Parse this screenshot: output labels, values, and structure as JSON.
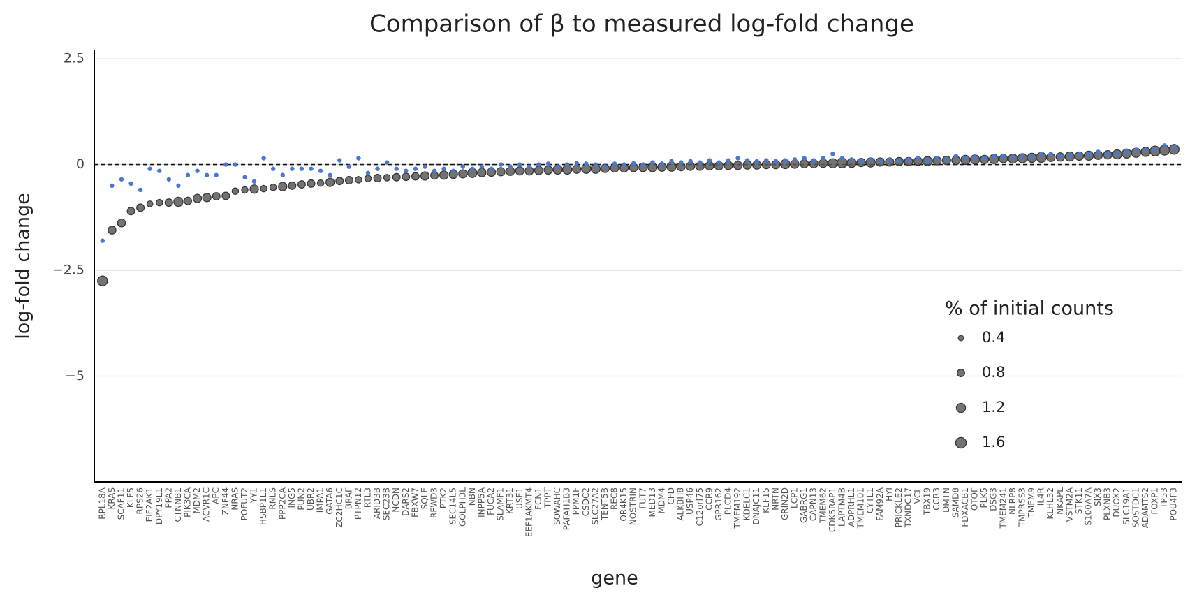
{
  "chart_data": {
    "type": "dot",
    "title": "Comparison of β to measured log-fold change",
    "x_label": "gene",
    "y_label": "log-fold change",
    "ylim": [
      -7.5,
      2.7
    ],
    "yticks": [
      2.5,
      0,
      {
        "value": -2.5,
        "label": "−2.5"
      },
      {
        "value": -5,
        "label": "−5"
      }
    ],
    "grid": true,
    "reference_line": 0,
    "categories": [
      "RPL18A",
      "KRAS",
      "SCAF11",
      "KLF5",
      "RPS26",
      "EIF2AK1",
      "DPY19L1",
      "PPA2",
      "CTNNB1",
      "PIK3CA",
      "MDM2",
      "ACVR1C",
      "APC",
      "ZNF44",
      "NRAS",
      "POFUT2",
      "YY1",
      "HSBP1L1",
      "RNLS",
      "PPP2CA",
      "ING5",
      "PUN2",
      "UBR2",
      "IMPA1",
      "GATA6",
      "ZC2HC1C",
      "BRAF",
      "PTPN12",
      "RTL3",
      "ARID3B",
      "SEC23B",
      "NCDN",
      "DARS2",
      "FBXW7",
      "SQLE",
      "RFWD3",
      "PTK2",
      "SEC14L5",
      "GOLPH3L",
      "NBN",
      "INPP5A",
      "FUCA2",
      "SLAMF1",
      "KRT31",
      "USF1",
      "EEF1AKMT4",
      "FCN1",
      "TPPT",
      "SOWAHC",
      "PAFAH1B3",
      "PPM1F",
      "CSDC2",
      "SLC27A2",
      "TENT5B",
      "REC8",
      "OR4K15",
      "NOSTRIN",
      "FUT7",
      "MED13",
      "MDM4",
      "CFD",
      "ALKBH8",
      "USP46",
      "C12orf75",
      "CCR9",
      "GPR162",
      "PLCD4",
      "TMEM192",
      "KDELC1",
      "DNAJC11",
      "KLF15",
      "NRTN",
      "GRIN2D",
      "LCP1",
      "GABRG1",
      "CAPN13",
      "TMEM62",
      "CDK5RAP1",
      "LAPTM4B",
      "ADPRHL1",
      "TMEM101",
      "CYTL1",
      "FAM92A",
      "HYI",
      "PRICKLE2",
      "TXNDC17",
      "VCL",
      "TBX19",
      "CCR3",
      "DMTN",
      "SAMD8",
      "FDXACB1",
      "OTOF",
      "PLK5",
      "DSG3",
      "TMEM241",
      "NLRP8",
      "TMPRSS3",
      "TMEM9",
      "IL4R",
      "KLHL32",
      "NKAPL",
      "VSTM2A",
      "STK11",
      "S100A7A",
      "SIX3",
      "PLXNB3",
      "DUOX2",
      "SLC19A1",
      "SOSTDC1",
      "ADAMTS2",
      "FOXP1",
      "TP53",
      "POU4F3"
    ],
    "measured": {
      "color": "#5a5a5a",
      "values": [
        -2.75,
        -1.55,
        -1.38,
        -1.1,
        -1.02,
        -0.93,
        -0.9,
        -0.9,
        -0.88,
        -0.86,
        -0.8,
        -0.78,
        -0.75,
        -0.74,
        -0.63,
        -0.6,
        -0.58,
        -0.57,
        -0.54,
        -0.52,
        -0.5,
        -0.47,
        -0.45,
        -0.44,
        -0.42,
        -0.39,
        -0.37,
        -0.36,
        -0.33,
        -0.32,
        -0.31,
        -0.3,
        -0.29,
        -0.28,
        -0.27,
        -0.26,
        -0.25,
        -0.23,
        -0.22,
        -0.2,
        -0.19,
        -0.18,
        -0.17,
        -0.16,
        -0.15,
        -0.15,
        -0.14,
        -0.13,
        -0.12,
        -0.12,
        -0.11,
        -0.1,
        -0.1,
        -0.09,
        -0.08,
        -0.08,
        -0.07,
        -0.07,
        -0.06,
        -0.06,
        -0.05,
        -0.05,
        -0.04,
        -0.04,
        -0.03,
        -0.03,
        -0.02,
        -0.02,
        -0.01,
        -0.01,
        0,
        0,
        0.01,
        0.01,
        0.02,
        0.02,
        0.03,
        0.03,
        0.04,
        0.04,
        0.05,
        0.05,
        0.06,
        0.06,
        0.07,
        0.07,
        0.08,
        0.08,
        0.09,
        0.1,
        0.1,
        0.11,
        0.12,
        0.12,
        0.13,
        0.14,
        0.14,
        0.15,
        0.16,
        0.17,
        0.17,
        0.18,
        0.19,
        0.2,
        0.21,
        0.22,
        0.23,
        0.24,
        0.26,
        0.28,
        0.3,
        0.32,
        0.34,
        0.36
      ],
      "sizes": [
        1.4,
        0.9,
        0.9,
        0.8,
        0.8,
        0.5,
        0.6,
        0.8,
        1.2,
        0.8,
        1.0,
        1.0,
        0.8,
        0.8,
        0.6,
        0.6,
        1.0,
        0.6,
        0.6,
        1.0,
        0.8,
        0.8,
        0.8,
        0.6,
        1.0,
        0.8,
        0.8,
        0.6,
        0.6,
        0.8,
        0.6,
        0.8,
        0.8,
        0.8,
        1.0,
        0.8,
        1.0,
        1.0,
        1.0,
        1.2,
        1.0,
        1.0,
        1.0,
        1.0,
        1.0,
        1.0,
        1.0,
        1.0,
        1.2,
        1.2,
        1.0,
        1.2,
        1.2,
        1.0,
        1.0,
        1.0,
        1.0,
        1.0,
        1.2,
        1.0,
        1.2,
        1.0,
        1.0,
        1.0,
        1.0,
        1.0,
        1.0,
        1.0,
        1.0,
        1.0,
        1.0,
        1.0,
        1.2,
        1.0,
        1.0,
        1.0,
        1.0,
        1.2,
        1.4,
        1.2,
        1.0,
        1.2,
        1.0,
        1.0,
        1.0,
        1.0,
        1.0,
        1.2,
        1.0,
        1.0,
        1.0,
        1.2,
        1.2,
        1.0,
        1.2,
        1.0,
        1.2,
        1.2,
        1.2,
        1.4,
        1.0,
        1.0,
        1.2,
        1.0,
        1.2,
        1.0,
        1.0,
        1.2,
        1.2,
        1.2,
        1.2,
        1.4,
        1.4,
        1.4
      ]
    },
    "beta": {
      "color": "#4a78d0",
      "values": [
        -1.8,
        -0.5,
        -0.35,
        -0.45,
        -0.6,
        -0.1,
        -0.15,
        -0.35,
        -0.5,
        -0.25,
        -0.15,
        -0.25,
        -0.25,
        0,
        0,
        -0.3,
        -0.4,
        0.15,
        -0.1,
        -0.25,
        -0.1,
        -0.1,
        -0.1,
        -0.15,
        -0.25,
        0.1,
        -0.05,
        0.15,
        -0.2,
        -0.1,
        0.05,
        -0.1,
        -0.15,
        -0.1,
        -0.05,
        -0.15,
        -0.1,
        -0.15,
        -0.05,
        -0.1,
        -0.05,
        -0.1,
        0,
        -0.05,
        0,
        -0.05,
        0,
        0.02,
        -0.05,
        0,
        0.03,
        0.02,
        0,
        -0.05,
        0.02,
        0,
        0.03,
        0,
        0.05,
        0.02,
        0.08,
        0.05,
        0.08,
        0.05,
        0.1,
        0.05,
        0.1,
        0.15,
        0.1,
        0.08,
        0.1,
        0.08,
        0.1,
        0.12,
        0.15,
        0.1,
        0.15,
        0.25,
        0.15,
        0.12,
        0.1,
        0.12,
        0.1,
        0.12,
        0.1,
        0.12,
        0.15,
        0.1,
        0.15,
        0.12,
        0.2,
        0.15,
        0.18,
        0.15,
        0.2,
        0.2,
        0.18,
        0.2,
        0.2,
        0.25,
        0.25,
        0.2,
        0.22,
        0.25,
        0.25,
        0.3,
        0.25,
        0.25,
        0.3,
        0.35,
        0.35,
        0.35,
        0.45,
        0.4
      ]
    },
    "size_legend": {
      "title": "% of initial counts",
      "values": [
        0.4,
        0.8,
        1.2,
        1.6
      ]
    }
  }
}
